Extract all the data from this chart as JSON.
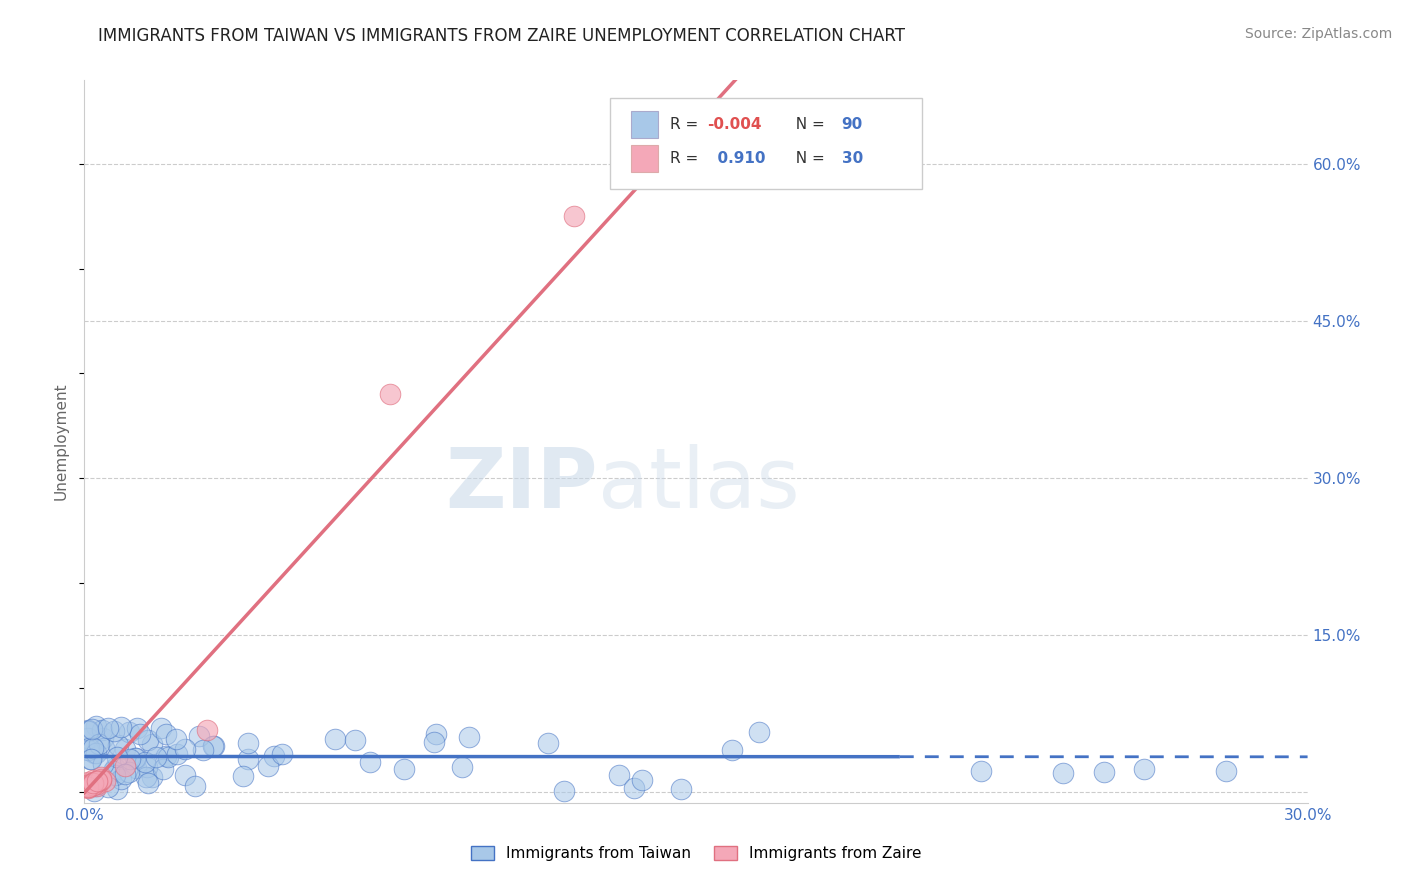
{
  "title": "IMMIGRANTS FROM TAIWAN VS IMMIGRANTS FROM ZAIRE UNEMPLOYMENT CORRELATION CHART",
  "source": "Source: ZipAtlas.com",
  "ylabel": "Unemployment",
  "xlim": [
    0.0,
    0.3
  ],
  "ylim": [
    -0.01,
    0.68
  ],
  "ytick_positions": [
    0.0,
    0.15,
    0.3,
    0.45,
    0.6
  ],
  "ytick_labels": [
    "",
    "15.0%",
    "30.0%",
    "45.0%",
    "60.0%"
  ],
  "taiwan_R": -0.004,
  "taiwan_N": 90,
  "zaire_R": 0.91,
  "zaire_N": 30,
  "taiwan_color": "#a8c8e8",
  "zaire_color": "#f4a8b8",
  "taiwan_line_color": "#4472c4",
  "zaire_line_color": "#e07080",
  "legend_taiwan_label": "Immigrants from Taiwan",
  "legend_zaire_label": "Immigrants from Zaire",
  "watermark_zip": "ZIP",
  "watermark_atlas": "atlas",
  "grid_color": "#cccccc",
  "background_color": "#ffffff"
}
